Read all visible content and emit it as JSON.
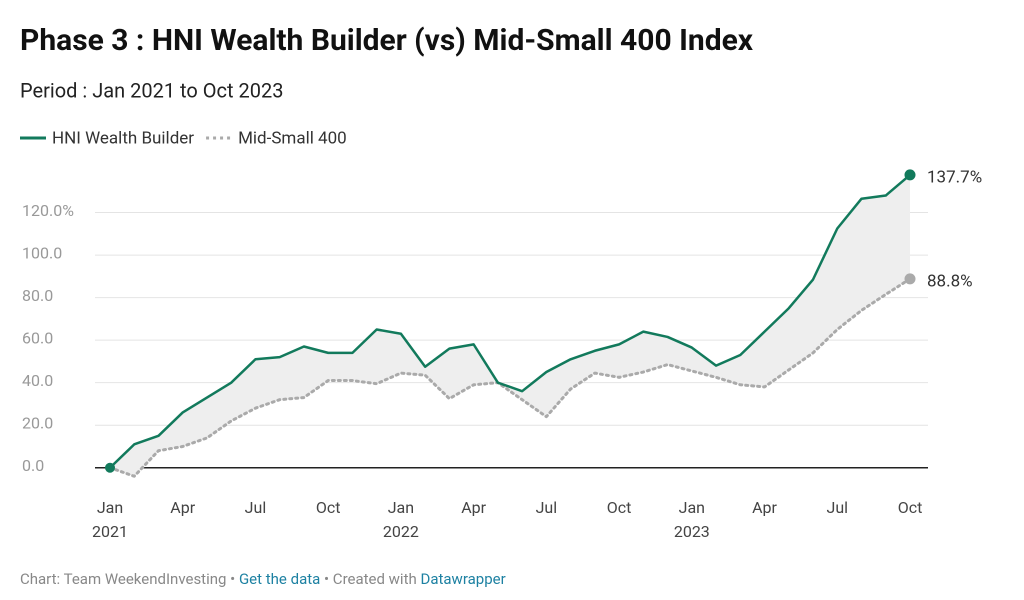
{
  "chart_data": {
    "type": "line",
    "title": "Phase 3 : HNI Wealth Builder (vs) Mid-Small 400 Index",
    "subtitle": "Period : Jan 2021 to Oct 2023",
    "categories": [
      "Jan",
      null,
      null,
      "Apr",
      null,
      null,
      "Jul",
      null,
      null,
      "Oct",
      null,
      null,
      "Jan",
      null,
      null,
      "Apr",
      null,
      null,
      "Jul",
      null,
      null,
      "Oct",
      null,
      null,
      "Jan",
      null,
      null,
      "Apr",
      null,
      null,
      "Jul",
      null,
      null,
      "Oct"
    ],
    "category_years": [
      "2021",
      null,
      null,
      null,
      null,
      null,
      null,
      null,
      null,
      null,
      null,
      null,
      "2022",
      null,
      null,
      null,
      null,
      null,
      null,
      null,
      null,
      null,
      null,
      null,
      "2023",
      null,
      null,
      null,
      null,
      null,
      null,
      null,
      null,
      null
    ],
    "series": [
      {
        "name": "HNI Wealth Builder",
        "color": "#127a5c",
        "style": "solid",
        "values": [
          0,
          11,
          15,
          26,
          33,
          40,
          51,
          52,
          57,
          54,
          54,
          65,
          63,
          47.5,
          56,
          58,
          40,
          36,
          45,
          51,
          55,
          58,
          64,
          61.5,
          56.5,
          48,
          53,
          64,
          75,
          88.5,
          112.5,
          126.5,
          128,
          137.7
        ],
        "value_labels": [
          null,
          null,
          null,
          null,
          null,
          null,
          null,
          null,
          null,
          null,
          null,
          null,
          null,
          null,
          null,
          null,
          null,
          null,
          null,
          null,
          null,
          null,
          null,
          null,
          null,
          null,
          null,
          null,
          null,
          null,
          null,
          null,
          null,
          "137.7%"
        ]
      },
      {
        "name": "Mid-Small 400",
        "color": "#aaaaaa",
        "style": "dotted",
        "values": [
          0,
          -4,
          8,
          10,
          14,
          22,
          28,
          32,
          33,
          41,
          41,
          39.5,
          44.5,
          43.5,
          32.5,
          39,
          40,
          32,
          24,
          37,
          44.5,
          42.5,
          45,
          48.5,
          45.5,
          42.5,
          39,
          38,
          46,
          54,
          65,
          74,
          81.5,
          88.8
        ],
        "value_labels": [
          null,
          null,
          null,
          null,
          null,
          null,
          null,
          null,
          null,
          null,
          null,
          null,
          null,
          null,
          null,
          null,
          null,
          null,
          null,
          null,
          null,
          null,
          null,
          null,
          null,
          null,
          null,
          null,
          null,
          null,
          null,
          null,
          null,
          "88.8%"
        ]
      }
    ],
    "ylim": [
      -10,
      140
    ],
    "yticks": [
      {
        "value": 0,
        "label": "0.0"
      },
      {
        "value": 20,
        "label": "20.0"
      },
      {
        "value": 40,
        "label": "40.0"
      },
      {
        "value": 60,
        "label": "60.0"
      },
      {
        "value": 80,
        "label": "80.0"
      },
      {
        "value": 100,
        "label": "100.0"
      },
      {
        "value": 120,
        "label": "120.0%"
      }
    ],
    "grid": true,
    "fill_between": true,
    "footer": [
      "Chart: Team WeekendInvesting",
      " • ",
      "Get the data",
      " • Created with ",
      "Datawrapper"
    ]
  }
}
